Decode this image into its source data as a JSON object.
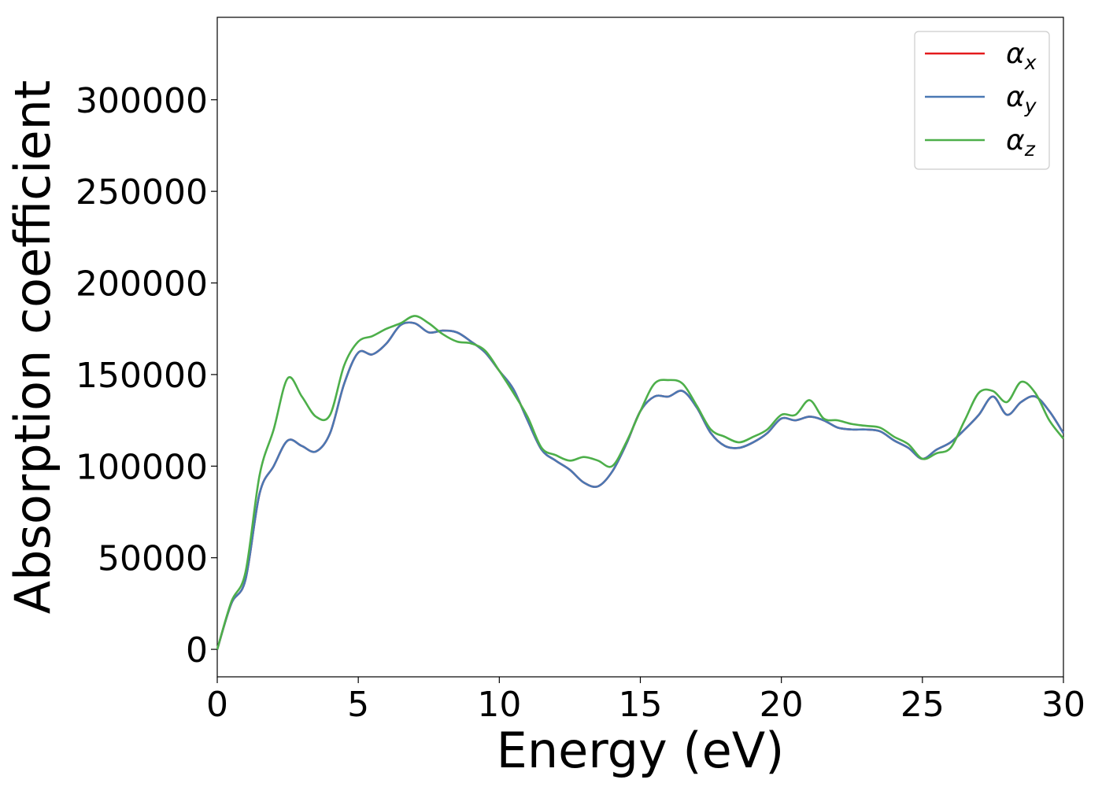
{
  "chart_data": {
    "type": "line",
    "title": "",
    "xlabel": "Energy (eV)",
    "ylabel": "Absorption coefficient",
    "xlim": [
      0,
      30
    ],
    "ylim": [
      -15000,
      345000
    ],
    "xticks": [
      0,
      5,
      10,
      15,
      20,
      25,
      30
    ],
    "yticks": [
      0,
      50000,
      100000,
      150000,
      200000,
      250000,
      300000
    ],
    "grid": false,
    "legend": "top-right",
    "x": [
      0,
      0.5,
      1,
      1.5,
      2,
      2.5,
      3,
      3.5,
      4,
      4.5,
      5,
      5.5,
      6,
      6.5,
      7,
      7.5,
      8,
      8.5,
      9,
      9.5,
      10,
      10.5,
      11,
      11.5,
      12,
      12.5,
      13,
      13.5,
      14,
      14.5,
      15,
      15.5,
      16,
      16.5,
      17,
      17.5,
      18,
      18.5,
      19,
      19.5,
      20,
      20.5,
      21,
      21.5,
      22,
      22.5,
      23,
      23.5,
      24,
      24.5,
      25,
      25.5,
      26,
      26.5,
      27,
      27.5,
      28,
      28.5,
      29,
      29.5,
      30
    ],
    "series": [
      {
        "name": "α_x",
        "color": "#e41a1c",
        "values": [
          0,
          25000,
          38000,
          85000,
          100000,
          114000,
          111000,
          108000,
          118000,
          145000,
          162000,
          161000,
          167000,
          177000,
          178000,
          173000,
          174000,
          173000,
          168000,
          162000,
          152000,
          142000,
          125000,
          109000,
          103000,
          98000,
          91000,
          89000,
          97000,
          112000,
          130000,
          138000,
          138000,
          141000,
          132000,
          118000,
          111000,
          110000,
          113000,
          118000,
          126000,
          125000,
          127000,
          125000,
          121000,
          120000,
          120000,
          119000,
          114000,
          110000,
          104000,
          109000,
          113000,
          120000,
          128000,
          138000,
          128000,
          135000,
          138000,
          130000,
          118000
        ]
      },
      {
        "name": "α_y",
        "color": "#4a78b3",
        "values": [
          0,
          25000,
          38000,
          85000,
          100000,
          114000,
          111000,
          108000,
          118000,
          145000,
          162000,
          161000,
          167000,
          177000,
          178000,
          173000,
          174000,
          173000,
          168000,
          162000,
          152000,
          142000,
          125000,
          109000,
          103000,
          98000,
          91000,
          89000,
          97000,
          112000,
          130000,
          138000,
          138000,
          141000,
          132000,
          118000,
          111000,
          110000,
          113000,
          118000,
          126000,
          125000,
          127000,
          125000,
          121000,
          120000,
          120000,
          119000,
          114000,
          110000,
          104000,
          109000,
          113000,
          120000,
          128000,
          138000,
          128000,
          135000,
          138000,
          130000,
          118000
        ]
      },
      {
        "name": "α_z",
        "color": "#4daf4a",
        "values": [
          0,
          26000,
          42000,
          95000,
          120000,
          148000,
          138000,
          127000,
          128000,
          155000,
          168000,
          171000,
          175000,
          178000,
          182000,
          178000,
          172000,
          168000,
          167000,
          163000,
          152000,
          140000,
          127000,
          110000,
          106000,
          103000,
          105000,
          103000,
          100000,
          113000,
          130000,
          145000,
          147000,
          145000,
          133000,
          120000,
          116000,
          113000,
          116000,
          120000,
          128000,
          128000,
          136000,
          126000,
          125000,
          123000,
          122000,
          121000,
          116000,
          112000,
          104000,
          107000,
          110000,
          125000,
          140000,
          141000,
          135000,
          146000,
          140000,
          125000,
          115000
        ]
      }
    ]
  }
}
